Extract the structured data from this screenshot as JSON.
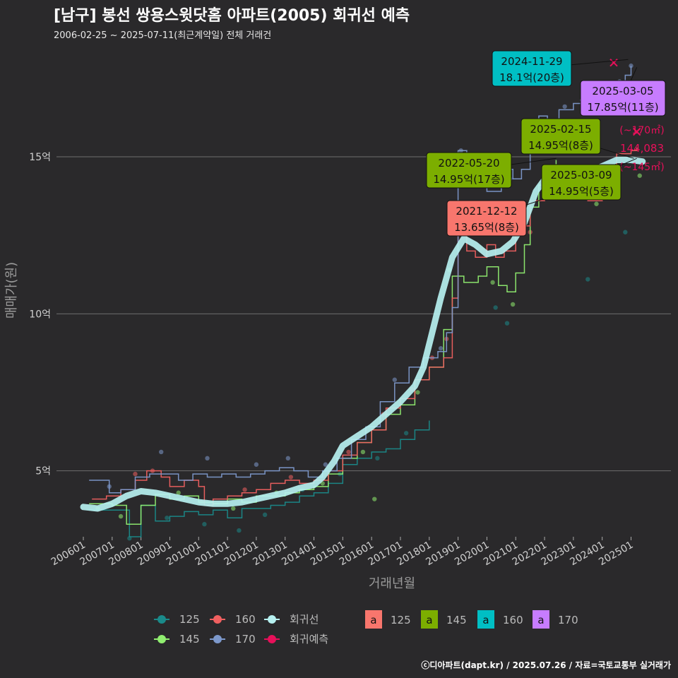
{
  "title": "[남구] 봉선 쌍용스윗닷홈 아파트(2005) 회귀선 예측",
  "subtitle": "2006-02-25 ~ 2025-07-11(최근계약일) 전체 거래건",
  "credit": "ⓒ디아파트(dapt.kr) / 2025.07.26 / 자료=국토교통부 실거래가",
  "colors": {
    "background": "#2a292b",
    "grid": "#6e6e6e",
    "s125": "#1a8a8a",
    "s145": "#90ee70",
    "s160": "#f06060",
    "s170": "#7d99cc",
    "regression": "#b6f0f0",
    "forecast": "#e8105a",
    "label125": "#f8766d",
    "label145": "#7cae00",
    "label160": "#00bfc4",
    "label170": "#c77cff"
  },
  "chart_data": {
    "type": "line",
    "xlabel": "거래년월",
    "ylabel": "매매가(원)",
    "x_range": [
      2006.0,
      2025.6
    ],
    "ylim": [
      2.9,
      18.6
    ],
    "y_ticks": [
      {
        "value": 5,
        "label": "5억"
      },
      {
        "value": 10,
        "label": "10억"
      },
      {
        "value": 15,
        "label": "15억"
      }
    ],
    "x_ticks": [
      "200601",
      "200701",
      "200801",
      "200901",
      "201001",
      "201101",
      "201201",
      "201301",
      "201401",
      "201501",
      "201601",
      "201701",
      "201801",
      "201901",
      "202001",
      "202101",
      "202201",
      "202301",
      "202401",
      "202501"
    ],
    "grid": true,
    "legend_position": "bottom",
    "series": [
      {
        "name": "125",
        "color_key": "s125",
        "points": [
          [
            2006.2,
            3.75
          ],
          [
            2007.0,
            3.75
          ],
          [
            2007.6,
            2.9
          ],
          [
            2008.0,
            3.9
          ],
          [
            2008.5,
            3.4
          ],
          [
            2009.0,
            3.55
          ],
          [
            2009.5,
            3.7
          ],
          [
            2010.0,
            3.6
          ],
          [
            2010.5,
            3.75
          ],
          [
            2011.0,
            3.5
          ],
          [
            2011.5,
            3.8
          ],
          [
            2012.0,
            3.8
          ],
          [
            2012.5,
            3.9
          ],
          [
            2013.0,
            4.0
          ],
          [
            2013.5,
            4.2
          ],
          [
            2014.0,
            4.3
          ],
          [
            2014.5,
            4.6
          ],
          [
            2015.0,
            5.2
          ],
          [
            2015.5,
            5.4
          ],
          [
            2016.0,
            5.6
          ],
          [
            2016.5,
            5.7
          ],
          [
            2017.0,
            6.0
          ],
          [
            2017.5,
            6.3
          ],
          [
            2018.0,
            6.6
          ]
        ]
      },
      {
        "name": "145",
        "color_key": "s145",
        "points": [
          [
            2006.2,
            3.95
          ],
          [
            2007.0,
            3.9
          ],
          [
            2007.5,
            3.3
          ],
          [
            2008.0,
            3.9
          ],
          [
            2008.5,
            4.25
          ],
          [
            2009.0,
            4.1
          ],
          [
            2009.5,
            4.2
          ],
          [
            2010.0,
            4.0
          ],
          [
            2010.5,
            3.95
          ],
          [
            2011.0,
            4.1
          ],
          [
            2011.5,
            4.0
          ],
          [
            2012.0,
            4.2
          ],
          [
            2012.5,
            4.2
          ],
          [
            2013.0,
            4.3
          ],
          [
            2013.5,
            4.4
          ],
          [
            2014.0,
            4.5
          ],
          [
            2014.5,
            4.9
          ],
          [
            2015.0,
            5.4
          ],
          [
            2015.5,
            5.9
          ],
          [
            2016.0,
            6.3
          ],
          [
            2016.5,
            6.8
          ],
          [
            2017.0,
            7.1
          ],
          [
            2017.5,
            7.9
          ],
          [
            2018.0,
            8.3
          ],
          [
            2018.5,
            9.5
          ],
          [
            2018.8,
            11.2
          ],
          [
            2019.2,
            11.0
          ],
          [
            2019.7,
            11.2
          ],
          [
            2020.0,
            11.5
          ],
          [
            2020.4,
            10.9
          ],
          [
            2020.7,
            10.7
          ],
          [
            2021.0,
            11.3
          ],
          [
            2021.3,
            12.2
          ],
          [
            2021.5,
            13.4
          ],
          [
            2021.8,
            14.1
          ],
          [
            2022.1,
            14.6
          ],
          [
            2022.4,
            14.9
          ]
        ]
      },
      {
        "name": "160",
        "color_key": "s160",
        "points": [
          [
            2006.3,
            4.1
          ],
          [
            2006.8,
            4.2
          ],
          [
            2007.3,
            4.4
          ],
          [
            2007.8,
            4.7
          ],
          [
            2008.2,
            5.0
          ],
          [
            2008.7,
            4.8
          ],
          [
            2009.0,
            4.5
          ],
          [
            2009.5,
            4.7
          ],
          [
            2010.0,
            4.5
          ],
          [
            2010.2,
            3.9
          ],
          [
            2010.5,
            4.1
          ],
          [
            2011.0,
            4.2
          ],
          [
            2011.5,
            4.3
          ],
          [
            2012.0,
            4.4
          ],
          [
            2012.5,
            4.6
          ],
          [
            2013.0,
            4.7
          ],
          [
            2013.5,
            4.6
          ],
          [
            2014.0,
            4.7
          ],
          [
            2014.5,
            5.0
          ],
          [
            2015.0,
            5.5
          ],
          [
            2015.5,
            5.9
          ],
          [
            2016.0,
            6.3
          ],
          [
            2016.5,
            7.0
          ],
          [
            2017.0,
            7.3
          ],
          [
            2017.5,
            7.9
          ],
          [
            2018.0,
            8.3
          ],
          [
            2018.5,
            8.6
          ],
          [
            2018.8,
            10.5
          ],
          [
            2019.0,
            12.6
          ],
          [
            2019.3,
            12.0
          ],
          [
            2019.6,
            11.8
          ],
          [
            2020.0,
            12.2
          ],
          [
            2020.3,
            11.8
          ],
          [
            2020.6,
            12.0
          ],
          [
            2021.0,
            12.6
          ],
          [
            2021.3,
            12.8
          ],
          [
            2021.5,
            13.6
          ],
          [
            2022.0,
            14.2
          ],
          [
            2022.5,
            14.5
          ],
          [
            2023.0,
            14.0
          ],
          [
            2023.5,
            13.6
          ],
          [
            2024.0,
            14.4
          ],
          [
            2024.5,
            15.1
          ],
          [
            2025.0,
            15.2
          ],
          [
            2025.2,
            15.3
          ]
        ]
      },
      {
        "name": "170",
        "color_key": "s170",
        "points": [
          [
            2006.2,
            4.7
          ],
          [
            2006.6,
            4.7
          ],
          [
            2006.9,
            4.3
          ],
          [
            2007.3,
            4.4
          ],
          [
            2007.8,
            4.8
          ],
          [
            2008.3,
            4.9
          ],
          [
            2008.8,
            4.9
          ],
          [
            2009.3,
            4.7
          ],
          [
            2009.8,
            4.9
          ],
          [
            2010.3,
            4.8
          ],
          [
            2010.8,
            4.9
          ],
          [
            2011.3,
            4.8
          ],
          [
            2011.8,
            4.9
          ],
          [
            2012.3,
            5.0
          ],
          [
            2012.8,
            5.1
          ],
          [
            2013.3,
            5.0
          ],
          [
            2013.8,
            4.8
          ],
          [
            2014.3,
            5.0
          ],
          [
            2014.8,
            5.4
          ],
          [
            2015.3,
            6.0
          ],
          [
            2015.8,
            6.4
          ],
          [
            2016.3,
            7.2
          ],
          [
            2016.8,
            7.8
          ],
          [
            2017.3,
            8.3
          ],
          [
            2017.8,
            8.6
          ],
          [
            2018.3,
            8.8
          ],
          [
            2018.6,
            9.4
          ],
          [
            2018.8,
            10.2
          ],
          [
            2019.0,
            15.2
          ],
          [
            2019.3,
            14.9
          ],
          [
            2019.6,
            14.2
          ],
          [
            2020.0,
            13.9
          ],
          [
            2020.5,
            14.6
          ],
          [
            2020.9,
            14.3
          ],
          [
            2021.2,
            14.6
          ],
          [
            2021.5,
            15.2
          ],
          [
            2021.8,
            16.3
          ],
          [
            2022.1,
            16.1
          ],
          [
            2022.5,
            16.5
          ],
          [
            2023.0,
            16.7
          ],
          [
            2023.5,
            17.0
          ],
          [
            2024.0,
            16.9
          ],
          [
            2024.4,
            17.3
          ],
          [
            2024.8,
            17.6
          ],
          [
            2025.0,
            17.9
          ]
        ]
      },
      {
        "name": "회귀선",
        "color_key": "regression",
        "points": [
          [
            2006.0,
            3.85
          ],
          [
            2006.5,
            3.8
          ],
          [
            2007.0,
            3.95
          ],
          [
            2007.5,
            4.2
          ],
          [
            2008.0,
            4.35
          ],
          [
            2008.5,
            4.3
          ],
          [
            2009.0,
            4.2
          ],
          [
            2009.5,
            4.1
          ],
          [
            2010.0,
            4.0
          ],
          [
            2010.5,
            3.95
          ],
          [
            2011.0,
            3.95
          ],
          [
            2011.5,
            4.0
          ],
          [
            2012.0,
            4.1
          ],
          [
            2012.5,
            4.2
          ],
          [
            2013.0,
            4.3
          ],
          [
            2013.5,
            4.45
          ],
          [
            2014.0,
            4.55
          ],
          [
            2014.3,
            4.8
          ],
          [
            2014.7,
            5.3
          ],
          [
            2015.0,
            5.8
          ],
          [
            2015.5,
            6.1
          ],
          [
            2016.0,
            6.4
          ],
          [
            2016.5,
            6.8
          ],
          [
            2017.0,
            7.2
          ],
          [
            2017.5,
            7.7
          ],
          [
            2017.8,
            8.3
          ],
          [
            2018.1,
            9.4
          ],
          [
            2018.4,
            10.5
          ],
          [
            2018.8,
            11.8
          ],
          [
            2019.2,
            12.4
          ],
          [
            2019.6,
            12.2
          ],
          [
            2020.0,
            11.9
          ],
          [
            2020.5,
            12.0
          ],
          [
            2020.9,
            12.3
          ],
          [
            2021.3,
            12.9
          ],
          [
            2021.7,
            13.9
          ],
          [
            2022.1,
            14.4
          ],
          [
            2022.5,
            14.6
          ],
          [
            2023.0,
            14.5
          ],
          [
            2023.5,
            14.5
          ],
          [
            2024.0,
            14.7
          ],
          [
            2024.5,
            14.9
          ],
          [
            2025.0,
            14.9
          ],
          [
            2025.4,
            14.85
          ]
        ]
      }
    ],
    "scatter": [
      {
        "color_key": "s125",
        "points": [
          [
            2007.6,
            2.85
          ],
          [
            2008.9,
            3.5
          ],
          [
            2010.2,
            3.3
          ],
          [
            2011.4,
            3.1
          ],
          [
            2012.3,
            3.6
          ],
          [
            2013.6,
            4.4
          ],
          [
            2014.9,
            4.9
          ],
          [
            2016.2,
            5.4
          ],
          [
            2017.2,
            6.2
          ],
          [
            2020.3,
            10.2
          ],
          [
            2020.7,
            9.7
          ],
          [
            2023.5,
            11.1
          ],
          [
            2024.8,
            12.6
          ]
        ]
      },
      {
        "color_key": "s145",
        "points": [
          [
            2006.5,
            3.8
          ],
          [
            2007.3,
            3.55
          ],
          [
            2009.3,
            4.3
          ],
          [
            2011.2,
            3.8
          ],
          [
            2012.7,
            4.3
          ],
          [
            2014.3,
            4.6
          ],
          [
            2015.7,
            5.6
          ],
          [
            2016.1,
            4.1
          ],
          [
            2017.6,
            7.5
          ],
          [
            2018.7,
            11.4
          ],
          [
            2020.2,
            11.0
          ],
          [
            2020.9,
            10.3
          ],
          [
            2022.3,
            14.2
          ],
          [
            2023.8,
            13.5
          ],
          [
            2025.3,
            14.4
          ]
        ]
      },
      {
        "color_key": "s160",
        "points": [
          [
            2007.8,
            4.9
          ],
          [
            2008.4,
            5.0
          ],
          [
            2010.1,
            4.0
          ],
          [
            2011.6,
            4.4
          ],
          [
            2013.2,
            4.8
          ],
          [
            2015.2,
            5.6
          ],
          [
            2016.4,
            6.8
          ],
          [
            2017.4,
            7.6
          ],
          [
            2018.1,
            8.6
          ],
          [
            2018.6,
            9.2
          ],
          [
            2019.2,
            12.7
          ],
          [
            2021.5,
            12.6
          ],
          [
            2022.6,
            14.3
          ],
          [
            2024.2,
            14.6
          ]
        ]
      },
      {
        "color_key": "s170",
        "points": [
          [
            2006.9,
            4.5
          ],
          [
            2008.7,
            5.6
          ],
          [
            2010.3,
            5.4
          ],
          [
            2012.0,
            5.2
          ],
          [
            2013.1,
            5.4
          ],
          [
            2014.4,
            5.2
          ],
          [
            2016.8,
            7.9
          ],
          [
            2018.4,
            8.9
          ],
          [
            2019.1,
            15.2
          ],
          [
            2020.8,
            14.3
          ],
          [
            2021.7,
            15.5
          ],
          [
            2022.7,
            16.6
          ],
          [
            2023.3,
            16.8
          ],
          [
            2024.6,
            17.4
          ],
          [
            2025.0,
            17.9
          ]
        ]
      }
    ],
    "forecast": {
      "name": "회귀예측",
      "upper_label": "(~170㎡)",
      "value_label": "144,083",
      "lower_label": "(~145㎡)",
      "markers": [
        [
          2022.5,
          14.4
        ],
        [
          2024.4,
          18.0
        ],
        [
          2025.2,
          15.8
        ]
      ]
    },
    "annotations": [
      {
        "date": "2024-11-29",
        "price": "18.1억(20층)",
        "color_key": "label160",
        "x": 2024.9,
        "y": 18.1
      },
      {
        "date": "2025-03-05",
        "price": "17.85억(11층)",
        "color_key": "label170",
        "x": 2025.2,
        "y": 17.85
      },
      {
        "date": "2025-02-15",
        "price": "14.95억(8층)",
        "color_key": "label145",
        "x": 2025.1,
        "y": 14.95
      },
      {
        "date": "2022-05-20",
        "price": "14.95억(17층)",
        "color_key": "label145",
        "x": 2022.4,
        "y": 14.95
      },
      {
        "date": "2025-03-09",
        "price": "14.95억(5층)",
        "color_key": "label145",
        "x": 2025.2,
        "y": 14.95
      },
      {
        "date": "2021-12-12",
        "price": "13.65억(8층)",
        "color_key": "label125",
        "x": 2021.95,
        "y": 13.65
      }
    ],
    "legend": {
      "lines": [
        {
          "label": "125",
          "color_key": "s125"
        },
        {
          "label": "160",
          "color_key": "s160"
        },
        {
          "label": "회귀선",
          "color_key": "regression"
        },
        {
          "label": "145",
          "color_key": "s145"
        },
        {
          "label": "170",
          "color_key": "s170"
        },
        {
          "label": "회귀예측",
          "color_key": "forecast"
        }
      ],
      "key_letter": "a",
      "labels": [
        {
          "label": "125",
          "color_key": "label125"
        },
        {
          "label": "145",
          "color_key": "label145"
        },
        {
          "label": "160",
          "color_key": "label160"
        },
        {
          "label": "170",
          "color_key": "label170"
        }
      ]
    }
  }
}
